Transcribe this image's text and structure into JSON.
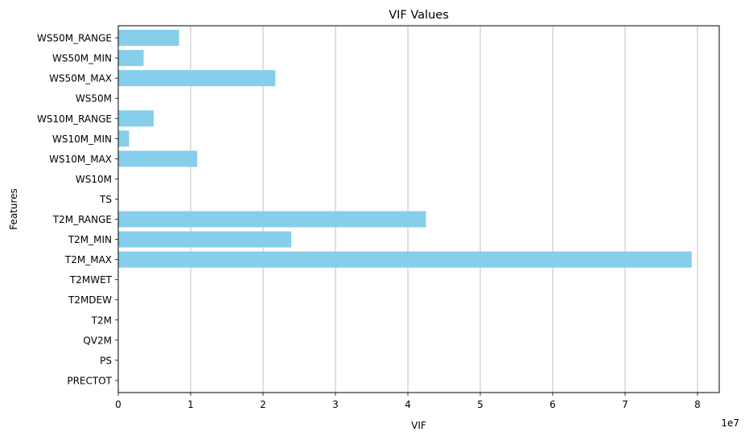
{
  "chart_data": {
    "type": "bar",
    "orientation": "horizontal",
    "title": "VIF Values",
    "xlabel": "VIF",
    "ylabel": "Features",
    "x_scale_label": "1e7",
    "xlim": [
      0,
      8.3
    ],
    "x_ticks": [
      "0",
      "1",
      "2",
      "3",
      "4",
      "5",
      "6",
      "7",
      "8"
    ],
    "x_tick_values": [
      0,
      1,
      2,
      3,
      4,
      5,
      6,
      7,
      8
    ],
    "grid": "x-axis vertical lines",
    "categories": [
      "PRECTOT",
      "PS",
      "QV2M",
      "T2M",
      "T2MDEW",
      "T2MWET",
      "T2M_MAX",
      "T2M_MIN",
      "T2M_RANGE",
      "TS",
      "WS10M",
      "WS10M_MAX",
      "WS10M_MIN",
      "WS10M_RANGE",
      "WS50M",
      "WS50M_MAX",
      "WS50M_MIN",
      "WS50M_RANGE"
    ],
    "values": [
      0,
      0,
      0,
      0,
      0,
      0,
      7.92,
      2.39,
      4.25,
      0,
      0,
      1.09,
      0.15,
      0.49,
      0,
      2.17,
      0.35,
      0.84
    ],
    "value_unit_multiplier": 10000000,
    "bar_color": "#87ceeb"
  }
}
